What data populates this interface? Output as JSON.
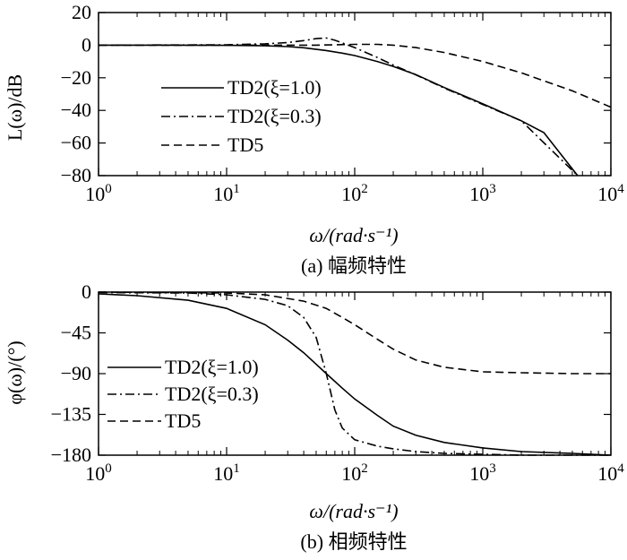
{
  "chart_data": [
    {
      "type": "line",
      "x_scale": "log",
      "xlim": [
        1,
        10000
      ],
      "ylim": [
        -80,
        20
      ],
      "y_ticks": [
        "20",
        "0",
        "−20",
        "−40",
        "−60",
        "−80"
      ],
      "y_tick_values": [
        20,
        0,
        -20,
        -40,
        -60,
        -80
      ],
      "x_ticks": [
        {
          "base": "10",
          "exp": "0"
        },
        {
          "base": "10",
          "exp": "1"
        },
        {
          "base": "10",
          "exp": "2"
        },
        {
          "base": "10",
          "exp": "3"
        },
        {
          "base": "10",
          "exp": "4"
        }
      ],
      "x_tick_values": [
        1,
        10,
        100,
        1000,
        10000
      ],
      "ylabel": "L(ω)/dB",
      "xlabel": "ω/(rad·s⁻¹)",
      "caption": "(a) 幅频特性",
      "legend_position": "middle-left",
      "series": [
        {
          "name": "TD2(ξ=1.0)",
          "style": "solid",
          "x": [
            1,
            3,
            10,
            20,
            30,
            40,
            60,
            80,
            100,
            150,
            200,
            300,
            500,
            1000,
            2000,
            3000,
            5500
          ],
          "y": [
            0,
            0,
            -0.1,
            -0.4,
            -0.9,
            -1.6,
            -3.3,
            -4.9,
            -6.4,
            -10,
            -13,
            -18,
            -26,
            -36,
            -46.4,
            -53.6,
            -80
          ]
        },
        {
          "name": "TD2(ξ=0.3)",
          "style": "dashdot",
          "x": [
            1,
            10,
            20,
            30,
            40,
            50,
            60,
            70,
            80,
            100,
            150,
            200,
            300,
            500,
            1000,
            2000,
            5500
          ],
          "y": [
            0,
            0.2,
            0.8,
            1.6,
            2.8,
            4.0,
            4.4,
            3.0,
            1.4,
            -1.5,
            -7.5,
            -12.2,
            -18.2,
            -26.3,
            -36.4,
            -46.4,
            -80
          ]
        },
        {
          "name": "TD5",
          "style": "dashed",
          "x": [
            1,
            10,
            50,
            100,
            150,
            200,
            300,
            500,
            1000,
            2000,
            5000,
            10000
          ],
          "y": [
            0,
            0,
            0,
            0.5,
            0.5,
            0,
            -1.5,
            -4.5,
            -10,
            -17,
            -28,
            -38
          ]
        }
      ]
    },
    {
      "type": "line",
      "x_scale": "log",
      "xlim": [
        1,
        10000
      ],
      "ylim": [
        -180,
        0
      ],
      "y_ticks": [
        "0",
        "−45",
        "−90",
        "−135",
        "−180"
      ],
      "y_tick_values": [
        0,
        -45,
        -90,
        -135,
        -180
      ],
      "x_ticks": [
        {
          "base": "10",
          "exp": "0"
        },
        {
          "base": "10",
          "exp": "1"
        },
        {
          "base": "10",
          "exp": "2"
        },
        {
          "base": "10",
          "exp": "3"
        },
        {
          "base": "10",
          "exp": "4"
        }
      ],
      "x_tick_values": [
        1,
        10,
        100,
        1000,
        10000
      ],
      "ylabel": "φ(ω)/(°)",
      "xlabel": "ω/(rad·s⁻¹)",
      "caption": "(b) 相频特性",
      "legend_position": "lower-left",
      "series": [
        {
          "name": "TD2(ξ=1.0)",
          "style": "solid",
          "x": [
            1,
            2,
            5,
            10,
            20,
            30,
            40,
            60,
            80,
            100,
            150,
            200,
            300,
            500,
            1000,
            2000,
            5000,
            10000
          ],
          "y": [
            -2,
            -4,
            -9,
            -18,
            -36,
            -53,
            -67,
            -90,
            -106,
            -118,
            -136,
            -148,
            -158,
            -166,
            -172,
            -176,
            -178,
            -180
          ]
        },
        {
          "name": "TD2(ξ=0.3)",
          "style": "dashdot",
          "x": [
            1,
            5,
            10,
            20,
            30,
            40,
            50,
            60,
            70,
            80,
            100,
            150,
            200,
            300,
            500,
            1000,
            2000,
            10000
          ],
          "y": [
            -0.5,
            -1,
            -3,
            -8,
            -15,
            -28,
            -50,
            -90,
            -130,
            -150,
            -163,
            -170,
            -173,
            -176,
            -178,
            -179,
            -180,
            -180
          ]
        },
        {
          "name": "TD5",
          "style": "dashed",
          "x": [
            1,
            10,
            20,
            40,
            60,
            80,
            100,
            150,
            200,
            300,
            500,
            1000,
            2000,
            5000,
            10000
          ],
          "y": [
            0,
            -1,
            -3,
            -10,
            -18,
            -28,
            -36,
            -52,
            -63,
            -75,
            -83,
            -88,
            -89,
            -90,
            -90
          ]
        }
      ]
    }
  ]
}
